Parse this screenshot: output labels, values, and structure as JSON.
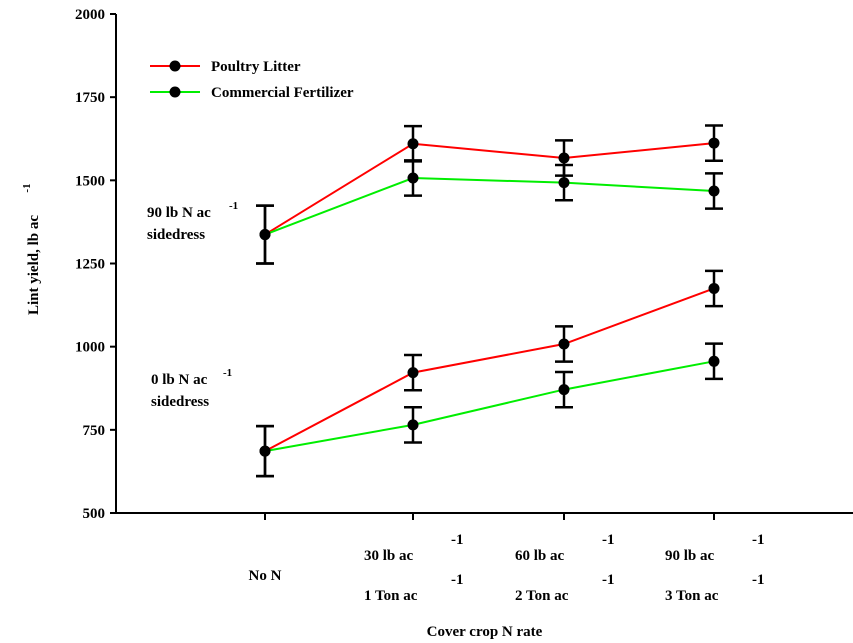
{
  "chart_data": {
    "type": "line",
    "xlabel": "Cover crop N rate",
    "ylabel": "Lint yield, lb ac",
    "ylabel_sup": "-1",
    "ylim": [
      500,
      2000
    ],
    "yticks": [
      500,
      750,
      1000,
      1250,
      1500,
      1750,
      2000
    ],
    "categories": [
      {
        "line1": "No N",
        "line2": ""
      },
      {
        "line1": "30 lb ac",
        "line1_sup": "-1",
        "line2": "1 Ton ac",
        "line2_sup": "-1"
      },
      {
        "line1": "60 lb ac",
        "line1_sup": "-1",
        "line2": "2 Ton ac",
        "line2_sup": "-1"
      },
      {
        "line1": "90 lb ac",
        "line1_sup": "-1",
        "line2": "3 Ton ac",
        "line2_sup": "-1"
      }
    ],
    "legend": {
      "position": "top-left"
    },
    "series": [
      {
        "name": "Poultry Litter",
        "group": "90",
        "color": "#ff0000",
        "values": [
          1337,
          1610,
          1567,
          1612
        ],
        "err": [
          87,
          53,
          53,
          53
        ]
      },
      {
        "name": "Commercial Fertilizer",
        "group": "90",
        "color": "#00ee00",
        "values": [
          1337,
          1507,
          1493,
          1468
        ],
        "err": [
          87,
          53,
          53,
          53
        ]
      },
      {
        "name": "Poultry Litter",
        "group": "0",
        "color": "#ff0000",
        "values": [
          686,
          922,
          1008,
          1175
        ],
        "err": [
          75,
          53,
          53,
          53
        ]
      },
      {
        "name": "Commercial Fertilizer",
        "group": "0",
        "color": "#00ee00",
        "values": [
          686,
          765,
          871,
          956
        ],
        "err": [
          75,
          53,
          53,
          53
        ]
      }
    ],
    "annotations": [
      {
        "id": "90",
        "line1": "90 lb N ac",
        "line1_sup": "-1",
        "line2": "sidedress"
      },
      {
        "id": "0",
        "line1": "0 lb N ac",
        "line1_sup": "-1",
        "line2": "sidedress"
      }
    ]
  }
}
